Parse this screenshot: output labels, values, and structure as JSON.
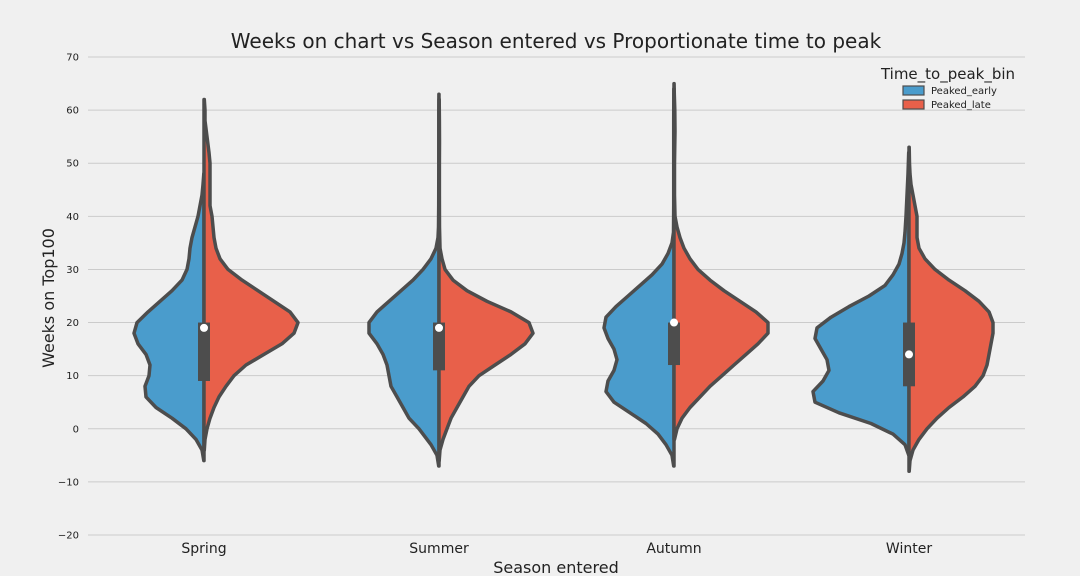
{
  "chart_data": {
    "type": "violin",
    "title": "Weeks on chart vs Season entered vs Proportionate time to peak",
    "xlabel": "Season entered",
    "ylabel": "Weeks on Top100",
    "ylim": [
      -20,
      70
    ],
    "yticks": [
      -20,
      -10,
      0,
      10,
      20,
      30,
      40,
      50,
      60,
      70
    ],
    "categories": [
      "Spring",
      "Summer",
      "Autumn",
      "Winter"
    ],
    "grid": true,
    "legend": {
      "title": "Time_to_peak_bin",
      "placement": "top-right",
      "entries": [
        {
          "name": "Peaked_early",
          "color": "#4a9ccc"
        },
        {
          "name": "Peaked_late",
          "color": "#e8604a"
        }
      ]
    },
    "series": [
      {
        "name": "Peaked_early",
        "color": "#4a9ccc",
        "side": "left",
        "profiles": [
          [
            [
              -6,
              0.2
            ],
            [
              -4,
              2
            ],
            [
              -2,
              8
            ],
            [
              0,
              18
            ],
            [
              2,
              32
            ],
            [
              4,
              48
            ],
            [
              6,
              58
            ],
            [
              8,
              59
            ],
            [
              10,
              55
            ],
            [
              12,
              54
            ],
            [
              14,
              58
            ],
            [
              16,
              66
            ],
            [
              18,
              70
            ],
            [
              20,
              67
            ],
            [
              22,
              56
            ],
            [
              24,
              44
            ],
            [
              26,
              32
            ],
            [
              28,
              22
            ],
            [
              30,
              17
            ],
            [
              32,
              15
            ],
            [
              34,
              14
            ],
            [
              36,
              12
            ],
            [
              38,
              9
            ],
            [
              40,
              6
            ],
            [
              42,
              4
            ],
            [
              44,
              2
            ],
            [
              46,
              1
            ],
            [
              48,
              0.2
            ]
          ],
          [
            [
              -7,
              0.3
            ],
            [
              -5,
              2
            ],
            [
              -3,
              8
            ],
            [
              0,
              20
            ],
            [
              2,
              30
            ],
            [
              4,
              36
            ],
            [
              6,
              42
            ],
            [
              8,
              48
            ],
            [
              10,
              50
            ],
            [
              12,
              52
            ],
            [
              14,
              56
            ],
            [
              16,
              62
            ],
            [
              18,
              70
            ],
            [
              20,
              70
            ],
            [
              22,
              62
            ],
            [
              24,
              50
            ],
            [
              26,
              38
            ],
            [
              28,
              26
            ],
            [
              30,
              16
            ],
            [
              32,
              8
            ],
            [
              34,
              3
            ],
            [
              36,
              1
            ],
            [
              38,
              0.5
            ],
            [
              42,
              0.3
            ],
            [
              50,
              0.2
            ],
            [
              56,
              0.2
            ],
            [
              60,
              0.2
            ],
            [
              63,
              0.1
            ]
          ],
          [
            [
              -7,
              0.3
            ],
            [
              -5,
              2
            ],
            [
              -3,
              8
            ],
            [
              -1,
              16
            ],
            [
              1,
              28
            ],
            [
              3,
              44
            ],
            [
              5,
              60
            ],
            [
              7,
              68
            ],
            [
              9,
              66
            ],
            [
              11,
              60
            ],
            [
              13,
              57
            ],
            [
              15,
              60
            ],
            [
              17,
              66
            ],
            [
              19,
              70
            ],
            [
              21,
              68
            ],
            [
              23,
              58
            ],
            [
              25,
              46
            ],
            [
              27,
              34
            ],
            [
              29,
              22
            ],
            [
              31,
              12
            ],
            [
              33,
              6
            ],
            [
              35,
              2
            ],
            [
              37,
              0.5
            ],
            [
              42,
              0.3
            ],
            [
              50,
              0.3
            ],
            [
              58,
              0.3
            ],
            [
              64,
              0.2
            ]
          ],
          [
            [
              -5,
              0.2
            ],
            [
              -3,
              4
            ],
            [
              -1,
              16
            ],
            [
              1,
              38
            ],
            [
              3,
              70
            ],
            [
              5,
              94
            ],
            [
              7,
              96
            ],
            [
              9,
              86
            ],
            [
              11,
              80
            ],
            [
              13,
              82
            ],
            [
              15,
              88
            ],
            [
              17,
              94
            ],
            [
              19,
              92
            ],
            [
              21,
              78
            ],
            [
              23,
              60
            ],
            [
              25,
              40
            ],
            [
              27,
              24
            ],
            [
              29,
              16
            ],
            [
              31,
              10
            ],
            [
              33,
              7
            ],
            [
              35,
              5
            ],
            [
              37,
              4
            ],
            [
              40,
              3
            ],
            [
              44,
              2
            ],
            [
              48,
              1
            ],
            [
              52,
              0.3
            ]
          ]
        ]
      },
      {
        "name": "Peaked_late",
        "color": "#e8604a",
        "side": "right",
        "profiles": [
          [
            [
              -4,
              0.3
            ],
            [
              -2,
              1
            ],
            [
              0,
              3
            ],
            [
              2,
              6
            ],
            [
              4,
              10
            ],
            [
              6,
              15
            ],
            [
              8,
              22
            ],
            [
              10,
              30
            ],
            [
              12,
              42
            ],
            [
              14,
              60
            ],
            [
              16,
              78
            ],
            [
              18,
              90
            ],
            [
              20,
              94
            ],
            [
              22,
              86
            ],
            [
              24,
              70
            ],
            [
              26,
              54
            ],
            [
              28,
              38
            ],
            [
              30,
              24
            ],
            [
              32,
              16
            ],
            [
              34,
              12
            ],
            [
              36,
              10
            ],
            [
              38,
              9
            ],
            [
              40,
              8
            ],
            [
              42,
              6
            ],
            [
              44,
              6
            ],
            [
              46,
              6
            ],
            [
              48,
              6
            ],
            [
              50,
              6
            ],
            [
              52,
              5
            ],
            [
              55,
              3
            ],
            [
              58,
              1
            ],
            [
              60,
              1
            ],
            [
              62,
              0.3
            ]
          ],
          [
            [
              -6,
              0.2
            ],
            [
              -4,
              1
            ],
            [
              -2,
              4
            ],
            [
              0,
              8
            ],
            [
              2,
              12
            ],
            [
              4,
              18
            ],
            [
              6,
              24
            ],
            [
              8,
              30
            ],
            [
              10,
              40
            ],
            [
              12,
              56
            ],
            [
              14,
              72
            ],
            [
              16,
              86
            ],
            [
              18,
              94
            ],
            [
              20,
              90
            ],
            [
              22,
              72
            ],
            [
              24,
              48
            ],
            [
              26,
              28
            ],
            [
              28,
              14
            ],
            [
              30,
              6
            ],
            [
              32,
              3
            ],
            [
              34,
              1
            ],
            [
              38,
              0.5
            ],
            [
              44,
              0.4
            ],
            [
              50,
              0.4
            ],
            [
              54,
              0.5
            ],
            [
              58,
              0.4
            ],
            [
              62,
              0.2
            ]
          ],
          [
            [
              -2,
              0.5
            ],
            [
              0,
              3
            ],
            [
              2,
              8
            ],
            [
              4,
              16
            ],
            [
              6,
              26
            ],
            [
              8,
              36
            ],
            [
              10,
              48
            ],
            [
              12,
              60
            ],
            [
              14,
              72
            ],
            [
              16,
              84
            ],
            [
              18,
              94
            ],
            [
              20,
              94
            ],
            [
              22,
              82
            ],
            [
              24,
              66
            ],
            [
              26,
              50
            ],
            [
              28,
              36
            ],
            [
              30,
              24
            ],
            [
              32,
              16
            ],
            [
              34,
              10
            ],
            [
              36,
              6
            ],
            [
              38,
              3
            ],
            [
              40,
              1
            ],
            [
              44,
              0.5
            ],
            [
              50,
              0.5
            ],
            [
              56,
              1
            ],
            [
              60,
              0.8
            ],
            [
              63,
              0.3
            ],
            [
              65,
              0.1
            ]
          ],
          [
            [
              -8,
              0.2
            ],
            [
              -6,
              1
            ],
            [
              -4,
              4
            ],
            [
              -2,
              10
            ],
            [
              0,
              18
            ],
            [
              2,
              28
            ],
            [
              4,
              40
            ],
            [
              6,
              54
            ],
            [
              8,
              66
            ],
            [
              10,
              74
            ],
            [
              12,
              78
            ],
            [
              14,
              80
            ],
            [
              16,
              82
            ],
            [
              18,
              84
            ],
            [
              20,
              84
            ],
            [
              22,
              80
            ],
            [
              24,
              70
            ],
            [
              26,
              56
            ],
            [
              28,
              40
            ],
            [
              30,
              26
            ],
            [
              32,
              16
            ],
            [
              34,
              10
            ],
            [
              36,
              8
            ],
            [
              38,
              8
            ],
            [
              40,
              8
            ],
            [
              42,
              6
            ],
            [
              44,
              4
            ],
            [
              46,
              2
            ],
            [
              48,
              1
            ],
            [
              50,
              0.5
            ],
            [
              53,
              0.2
            ]
          ]
        ]
      }
    ],
    "quartiles": [
      {
        "q1": 9,
        "median": 19,
        "q3": 20
      },
      {
        "q1": 11,
        "median": 19,
        "q3": 20
      },
      {
        "q1": 12,
        "median": 20,
        "q3": 20
      },
      {
        "q1": 8,
        "median": 14,
        "q3": 20
      }
    ]
  }
}
